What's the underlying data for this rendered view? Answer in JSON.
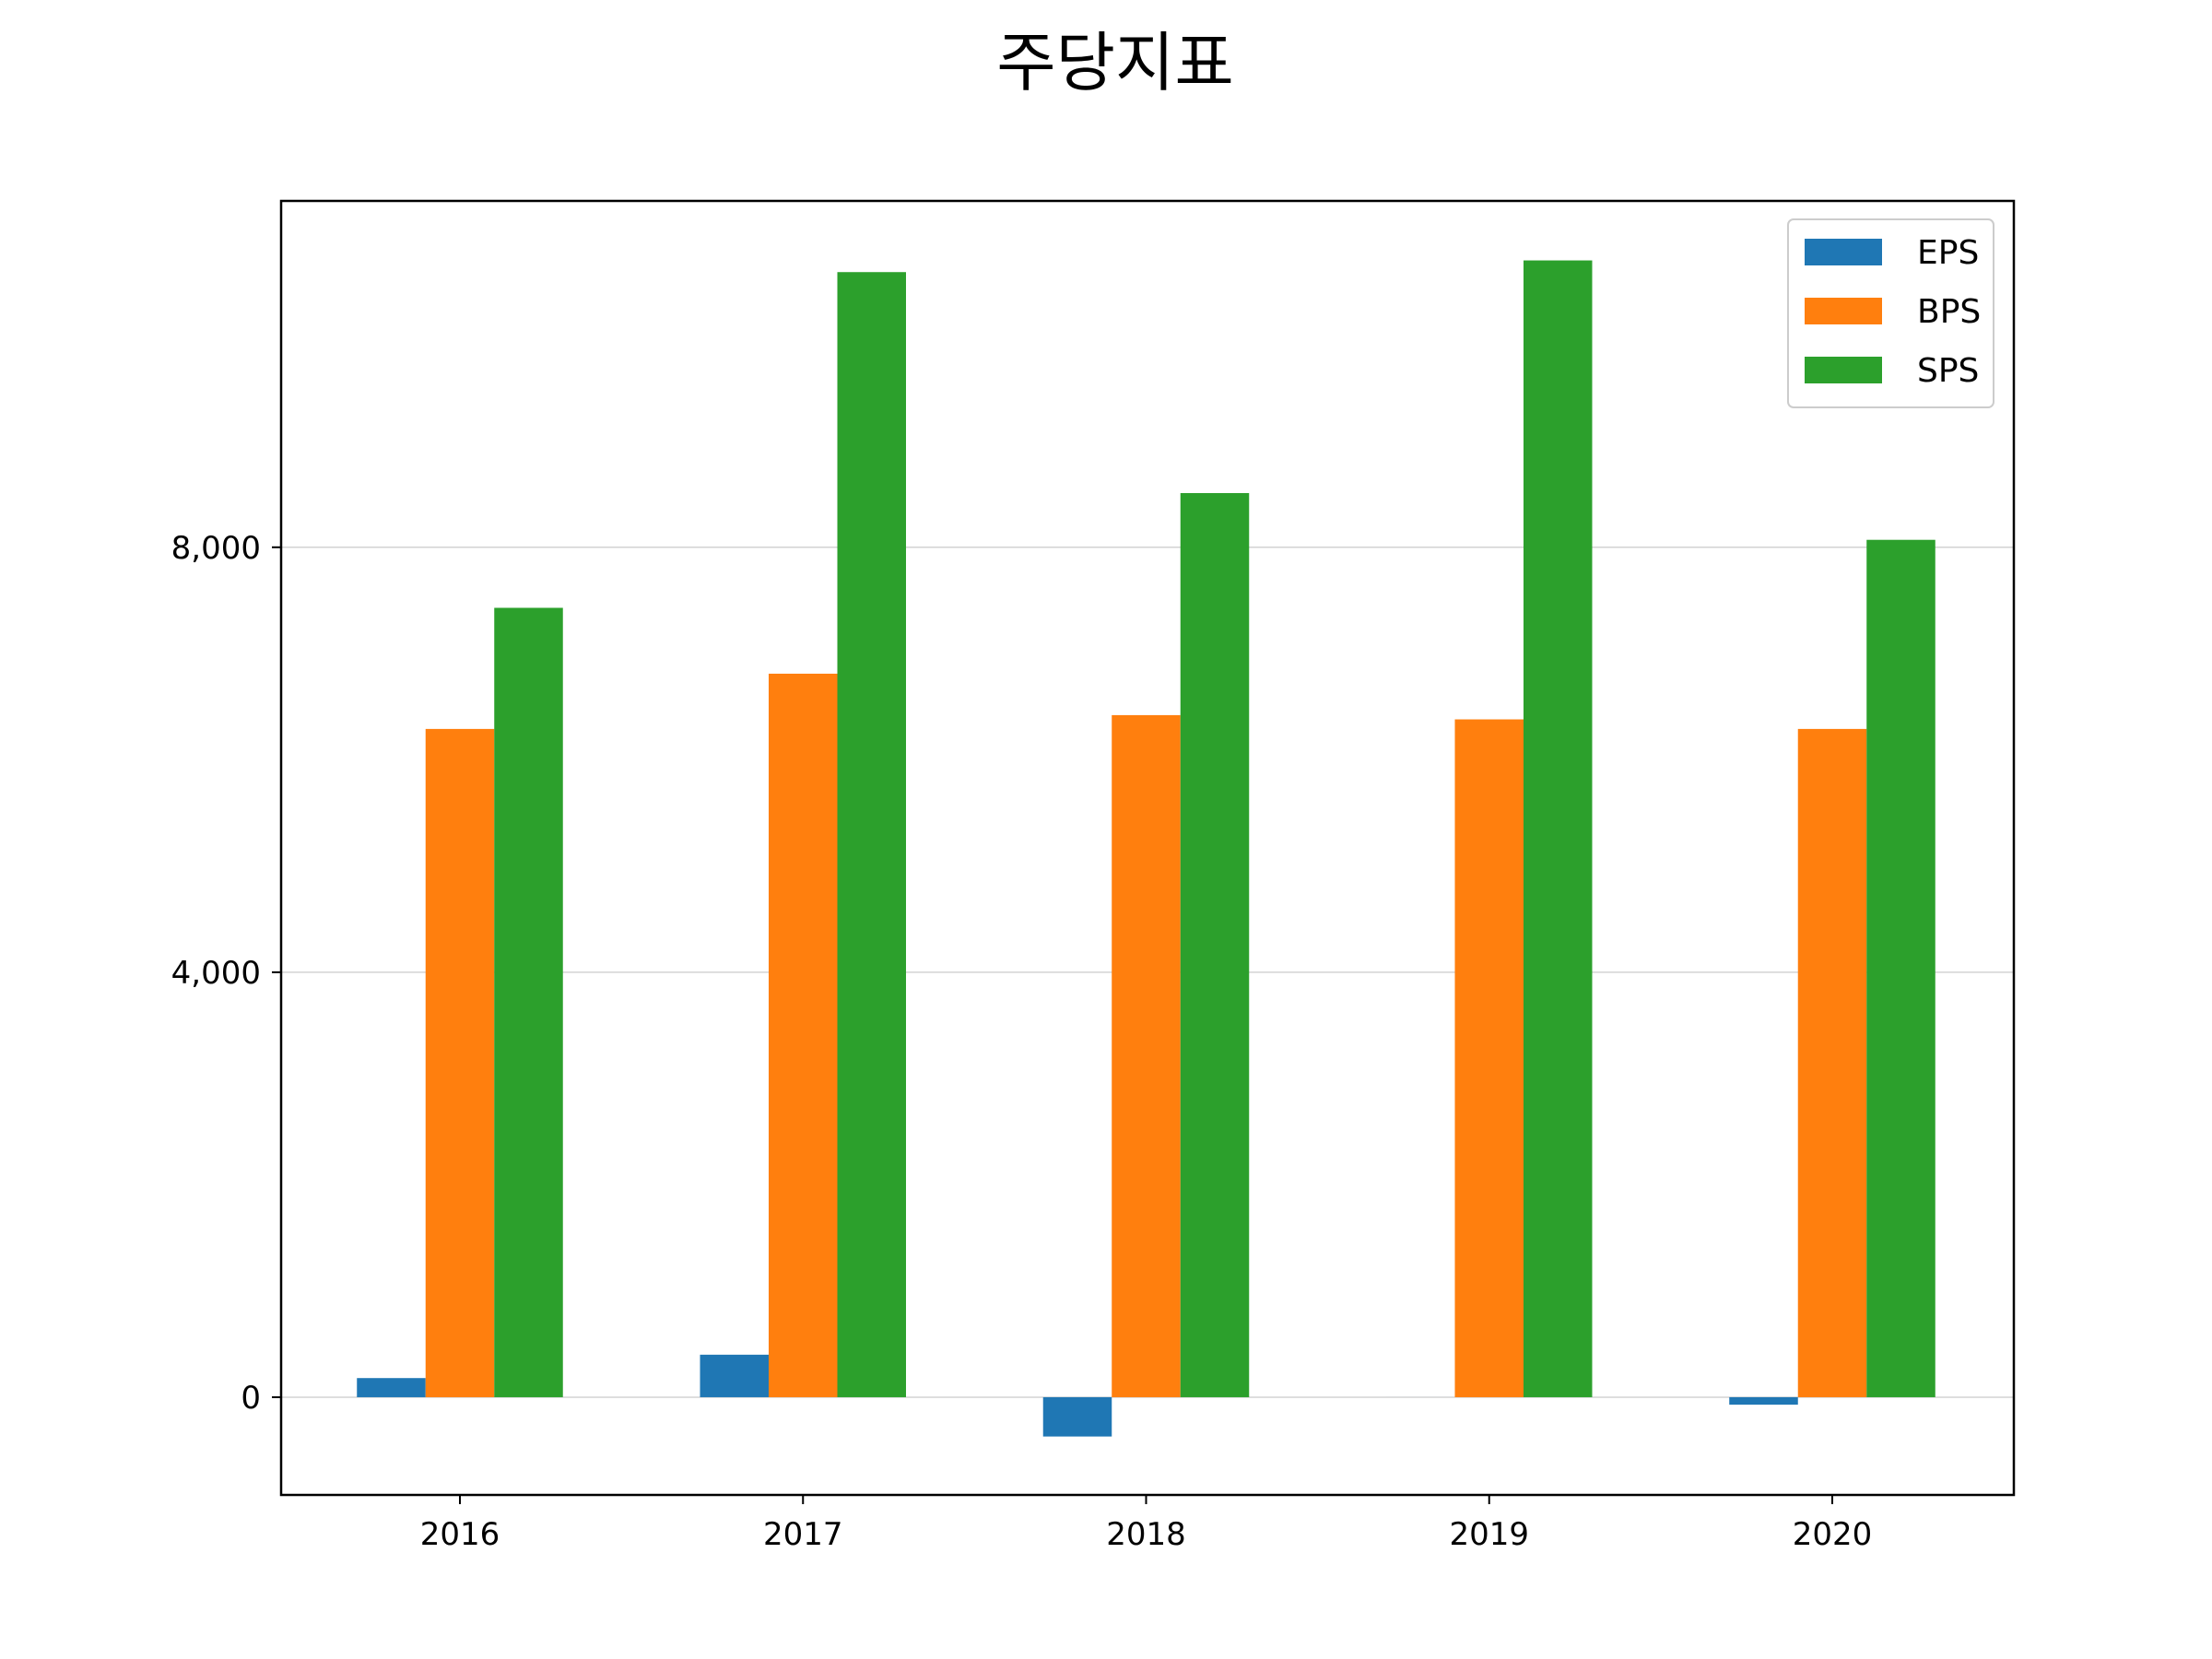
{
  "chart_data": {
    "type": "bar",
    "title": "주당지표",
    "xlabel": "",
    "ylabel": "",
    "categories": [
      "2016",
      "2017",
      "2018",
      "2019",
      "2020"
    ],
    "series": [
      {
        "name": "EPS",
        "color": "#1f77b4",
        "values": [
          180,
          400,
          -370,
          0,
          -70
        ]
      },
      {
        "name": "BPS",
        "color": "#ff7f0e",
        "values": [
          6290,
          6810,
          6420,
          6380,
          6290
        ]
      },
      {
        "name": "SPS",
        "color": "#2ca02c",
        "values": [
          7430,
          10590,
          8510,
          10700,
          8070
        ]
      }
    ],
    "ylim": [
      -920,
      11260
    ],
    "yticks": [
      0,
      4000,
      8000
    ],
    "ytick_labels": [
      "0",
      "4,000",
      "8,000"
    ],
    "grid": "y",
    "legend_position": "top-right"
  }
}
